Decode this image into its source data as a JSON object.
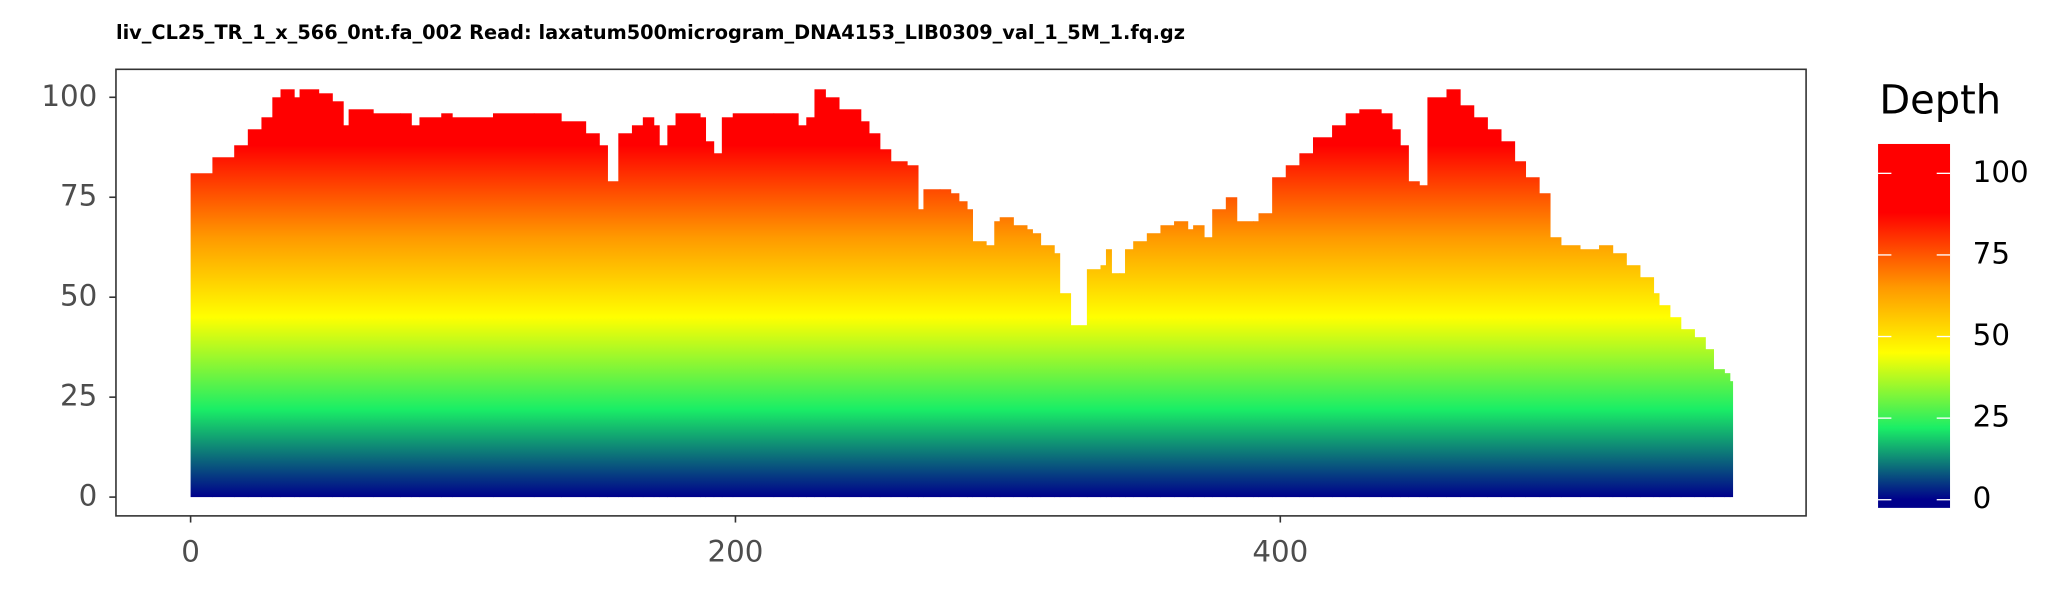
{
  "chart_data": {
    "type": "area",
    "title": "liv_CL25_TR_1_x_566_0nt.fa_002   Read: laxatum500microgram_DNA4153_LIB0309_val_1_5M_1.fq.gz",
    "x": [
      0,
      8,
      16,
      21,
      26,
      30,
      33,
      38,
      40,
      47,
      52,
      56,
      58,
      67,
      77,
      81,
      84,
      92,
      96,
      111,
      126,
      136,
      145,
      150,
      153,
      157,
      162,
      166,
      170,
      172,
      175,
      178,
      187,
      189,
      192,
      195,
      199,
      214,
      221,
      223,
      226,
      229,
      233,
      238,
      246,
      249,
      253,
      257,
      263,
      267,
      269,
      275,
      279,
      282,
      285,
      287,
      292,
      295,
      297,
      302,
      307,
      309,
      312,
      317,
      319,
      323,
      326,
      329,
      334,
      336,
      338,
      341,
      343,
      346,
      351,
      356,
      361,
      366,
      368,
      372,
      375,
      380,
      384,
      390,
      392,
      397,
      402,
      407,
      412,
      419,
      424,
      429,
      437,
      441,
      444,
      447,
      451,
      454,
      461,
      466,
      471,
      476,
      481,
      486,
      490,
      495,
      499,
      503,
      510,
      517,
      522,
      527,
      532,
      537,
      539,
      543,
      547,
      552,
      556,
      559,
      563,
      565
    ],
    "values": [
      81,
      85,
      88,
      92,
      95,
      100,
      102,
      100,
      102,
      101,
      99,
      93,
      97,
      96,
      96,
      93,
      95,
      96,
      95,
      96,
      96,
      94,
      91,
      88,
      79,
      91,
      93,
      95,
      93,
      88,
      93,
      96,
      95,
      89,
      86,
      95,
      96,
      96,
      96,
      93,
      95,
      102,
      100,
      97,
      94,
      91,
      87,
      84,
      83,
      72,
      77,
      77,
      76,
      74,
      72,
      64,
      63,
      69,
      70,
      68,
      67,
      66,
      63,
      61,
      51,
      43,
      43,
      57,
      58,
      62,
      56,
      56,
      62,
      64,
      66,
      68,
      69,
      67,
      68,
      65,
      72,
      75,
      69,
      69,
      71,
      80,
      83,
      86,
      90,
      93,
      96,
      97,
      96,
      92,
      88,
      79,
      78,
      100,
      102,
      98,
      95,
      92,
      89,
      84,
      80,
      76,
      65,
      63,
      62,
      63,
      61,
      58,
      55,
      51,
      48,
      45,
      42,
      40,
      37,
      32,
      31,
      29
    ],
    "xlim": [
      -27.4,
      593
    ],
    "ylim": [
      -4.7,
      107
    ],
    "xticks": [
      0,
      200,
      400
    ],
    "yticks": [
      0,
      25,
      50,
      75,
      100
    ],
    "colorscale": [
      {
        "value": 0,
        "color": "#00008b"
      },
      {
        "value": 22,
        "color": "#1aee66"
      },
      {
        "value": 45,
        "color": "#ffff00"
      },
      {
        "value": 65,
        "color": "#ff9900"
      },
      {
        "value": 88,
        "color": "#ff0000"
      }
    ],
    "legend": {
      "title": "Depth",
      "lim": [
        -2.5,
        109
      ],
      "ticks": [
        0,
        25,
        50,
        75,
        100
      ]
    }
  }
}
